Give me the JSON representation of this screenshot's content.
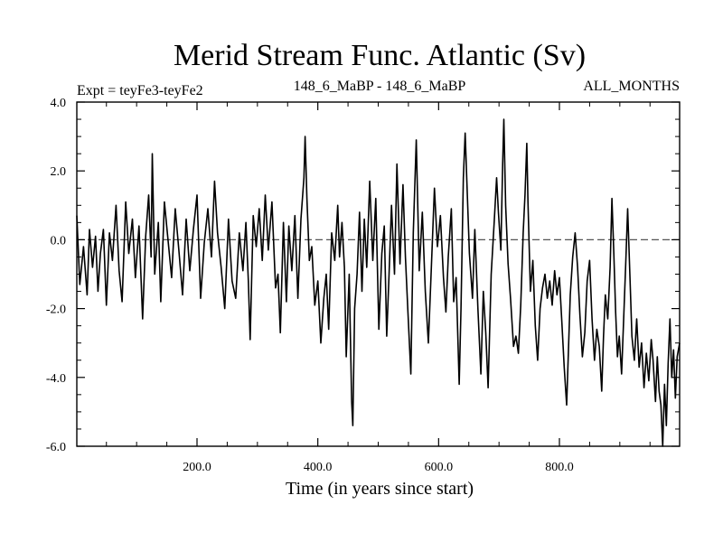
{
  "chart_data": {
    "type": "line",
    "title": "Merid Stream Func. Atlantic (Sv)",
    "subtitle_left": "Expt = teyFe3-teyFe2",
    "subtitle_center": "148_6_MaBP - 148_6_MaBP",
    "subtitle_right": "ALL_MONTHS",
    "xlabel": "Time (in years since start)",
    "ylabel": "",
    "xlim": [
      1,
      999
    ],
    "ylim": [
      -6.0,
      4.0
    ],
    "x_ticks": [
      200,
      400,
      600,
      800
    ],
    "x_tick_labels": [
      "200.0",
      "400.0",
      "600.0",
      "800.0"
    ],
    "y_ticks": [
      -6,
      -4,
      -2,
      0,
      2,
      4
    ],
    "y_tick_labels": [
      "-6.0",
      "-4.0",
      "-2.0",
      "0.0",
      "2.0",
      "4.0"
    ],
    "reference_line": {
      "y": 0.0,
      "style": "dashed"
    },
    "grid": false,
    "series": [
      {
        "name": "Merid Stream Func. Atlantic",
        "points": [
          [
            1,
            0.7
          ],
          [
            6,
            -1.3
          ],
          [
            12,
            -0.2
          ],
          [
            18,
            -1.6
          ],
          [
            22,
            0.3
          ],
          [
            27,
            -0.8
          ],
          [
            32,
            0.1
          ],
          [
            36,
            -1.5
          ],
          [
            40,
            -0.4
          ],
          [
            45,
            0.3
          ],
          [
            50,
            -1.9
          ],
          [
            55,
            0.2
          ],
          [
            60,
            -0.6
          ],
          [
            66,
            1.0
          ],
          [
            71,
            -0.9
          ],
          [
            76,
            -1.8
          ],
          [
            82,
            1.1
          ],
          [
            87,
            -0.4
          ],
          [
            93,
            0.6
          ],
          [
            98,
            -1.1
          ],
          [
            104,
            0.4
          ],
          [
            110,
            -2.3
          ],
          [
            115,
            0.1
          ],
          [
            120,
            1.3
          ],
          [
            124,
            -0.5
          ],
          [
            126,
            2.5
          ],
          [
            130,
            -1.0
          ],
          [
            136,
            0.5
          ],
          [
            140,
            -1.8
          ],
          [
            146,
            1.1
          ],
          [
            152,
            0.0
          ],
          [
            158,
            -1.1
          ],
          [
            164,
            0.9
          ],
          [
            170,
            -0.3
          ],
          [
            176,
            -1.6
          ],
          [
            182,
            0.6
          ],
          [
            188,
            -0.9
          ],
          [
            194,
            0.3
          ],
          [
            200,
            1.3
          ],
          [
            206,
            -1.7
          ],
          [
            212,
            -0.1
          ],
          [
            218,
            0.9
          ],
          [
            224,
            -0.5
          ],
          [
            229,
            1.7
          ],
          [
            234,
            0.2
          ],
          [
            240,
            -0.8
          ],
          [
            246,
            -2.0
          ],
          [
            252,
            0.6
          ],
          [
            258,
            -1.2
          ],
          [
            264,
            -1.7
          ],
          [
            270,
            0.2
          ],
          [
            276,
            -0.9
          ],
          [
            281,
            0.5
          ],
          [
            285,
            -1.2
          ],
          [
            288,
            -2.9
          ],
          [
            293,
            0.7
          ],
          [
            298,
            -0.2
          ],
          [
            303,
            0.9
          ],
          [
            308,
            -0.6
          ],
          [
            313,
            1.3
          ],
          [
            318,
            -0.3
          ],
          [
            324,
            1.1
          ],
          [
            330,
            -1.4
          ],
          [
            334,
            -1.0
          ],
          [
            338,
            -2.7
          ],
          [
            343,
            0.5
          ],
          [
            348,
            -1.8
          ],
          [
            352,
            0.4
          ],
          [
            357,
            -0.9
          ],
          [
            362,
            0.7
          ],
          [
            367,
            -1.7
          ],
          [
            372,
            0.6
          ],
          [
            377,
            1.8
          ],
          [
            379,
            3.0
          ],
          [
            382,
            1.2
          ],
          [
            386,
            -0.6
          ],
          [
            390,
            -0.2
          ],
          [
            395,
            -1.9
          ],
          [
            400,
            -1.2
          ],
          [
            405,
            -3.0
          ],
          [
            410,
            -1.7
          ],
          [
            414,
            -1.0
          ],
          [
            418,
            -2.6
          ],
          [
            423,
            0.2
          ],
          [
            428,
            -0.6
          ],
          [
            433,
            1.0
          ],
          [
            436,
            -0.5
          ],
          [
            440,
            0.5
          ],
          [
            444,
            -0.8
          ],
          [
            447,
            -3.4
          ],
          [
            452,
            -1.0
          ],
          [
            456,
            -4.7
          ],
          [
            458,
            -5.4
          ],
          [
            461,
            -2.0
          ],
          [
            465,
            -1.0
          ],
          [
            469,
            0.8
          ],
          [
            473,
            -1.5
          ],
          [
            477,
            0.6
          ],
          [
            481,
            -0.8
          ],
          [
            486,
            1.7
          ],
          [
            491,
            -0.6
          ],
          [
            496,
            1.2
          ],
          [
            501,
            -2.6
          ],
          [
            506,
            -0.4
          ],
          [
            510,
            0.4
          ],
          [
            514,
            -2.8
          ],
          [
            518,
            -1.0
          ],
          [
            522,
            1.0
          ],
          [
            527,
            -1.0
          ],
          [
            531,
            2.2
          ],
          [
            536,
            -0.7
          ],
          [
            541,
            1.6
          ],
          [
            545,
            -0.5
          ],
          [
            549,
            -2.0
          ],
          [
            554,
            -3.9
          ],
          [
            558,
            0.2
          ],
          [
            563,
            2.9
          ],
          [
            568,
            -0.9
          ],
          [
            573,
            0.8
          ],
          [
            578,
            -1.5
          ],
          [
            583,
            -3.0
          ],
          [
            588,
            -0.8
          ],
          [
            593,
            1.5
          ],
          [
            598,
            -0.2
          ],
          [
            603,
            0.7
          ],
          [
            608,
            -1.1
          ],
          [
            612,
            -2.1
          ],
          [
            616,
            -0.5
          ],
          [
            621,
            0.9
          ],
          [
            625,
            -1.8
          ],
          [
            629,
            -1.1
          ],
          [
            634,
            -4.2
          ],
          [
            637,
            -2.0
          ],
          [
            641,
            1.8
          ],
          [
            644,
            3.1
          ],
          [
            647,
            1.6
          ],
          [
            651,
            -0.4
          ],
          [
            656,
            -1.7
          ],
          [
            660,
            0.3
          ],
          [
            665,
            -2.0
          ],
          [
            670,
            -3.9
          ],
          [
            674,
            -1.5
          ],
          [
            678,
            -2.7
          ],
          [
            682,
            -4.3
          ],
          [
            687,
            -1.0
          ],
          [
            692,
            0.5
          ],
          [
            696,
            1.8
          ],
          [
            699,
            0.8
          ],
          [
            703,
            -0.3
          ],
          [
            706,
            2.2
          ],
          [
            708,
            3.5
          ],
          [
            711,
            1.0
          ],
          [
            715,
            -0.7
          ],
          [
            719,
            -1.7
          ],
          [
            724,
            -3.1
          ],
          [
            728,
            -2.8
          ],
          [
            732,
            -3.3
          ],
          [
            736,
            -1.9
          ],
          [
            740,
            0.2
          ],
          [
            743,
            1.3
          ],
          [
            746,
            2.8
          ],
          [
            748,
            1.1
          ],
          [
            752,
            -1.5
          ],
          [
            756,
            -0.6
          ],
          [
            760,
            -2.5
          ],
          [
            764,
            -3.5
          ],
          [
            768,
            -2.0
          ],
          [
            772,
            -1.4
          ],
          [
            776,
            -1.0
          ],
          [
            780,
            -1.7
          ],
          [
            784,
            -1.2
          ],
          [
            788,
            -1.9
          ],
          [
            792,
            -0.9
          ],
          [
            796,
            -1.6
          ],
          [
            800,
            -1.1
          ],
          [
            804,
            -2.4
          ],
          [
            808,
            -3.7
          ],
          [
            812,
            -4.8
          ],
          [
            815,
            -3.2
          ],
          [
            818,
            -1.6
          ],
          [
            822,
            -0.5
          ],
          [
            826,
            0.2
          ],
          [
            830,
            -0.8
          ],
          [
            834,
            -2.2
          ],
          [
            838,
            -3.4
          ],
          [
            842,
            -2.7
          ],
          [
            846,
            -1.2
          ],
          [
            850,
            -0.6
          ],
          [
            854,
            -2.3
          ],
          [
            858,
            -3.5
          ],
          [
            862,
            -2.6
          ],
          [
            866,
            -3.1
          ],
          [
            870,
            -4.4
          ],
          [
            873,
            -2.8
          ],
          [
            876,
            -1.6
          ],
          [
            880,
            -2.3
          ],
          [
            884,
            -0.8
          ],
          [
            887,
            1.2
          ],
          [
            890,
            -0.4
          ],
          [
            893,
            -2.1
          ],
          [
            896,
            -3.4
          ],
          [
            899,
            -2.8
          ],
          [
            903,
            -3.9
          ],
          [
            906,
            -2.5
          ],
          [
            910,
            -0.6
          ],
          [
            913,
            0.9
          ],
          [
            917,
            -1.2
          ],
          [
            920,
            -2.8
          ],
          [
            924,
            -3.5
          ],
          [
            928,
            -2.3
          ],
          [
            932,
            -3.7
          ],
          [
            936,
            -3.0
          ],
          [
            940,
            -4.3
          ],
          [
            944,
            -3.3
          ],
          [
            948,
            -4.1
          ],
          [
            952,
            -2.9
          ],
          [
            955,
            -3.5
          ],
          [
            959,
            -4.7
          ],
          [
            962,
            -3.4
          ],
          [
            965,
            -4.4
          ],
          [
            968,
            -4.8
          ],
          [
            971,
            -6.0
          ],
          [
            974,
            -4.2
          ],
          [
            977,
            -5.4
          ],
          [
            980,
            -3.6
          ],
          [
            983,
            -2.3
          ],
          [
            986,
            -4.0
          ],
          [
            989,
            -3.2
          ],
          [
            992,
            -4.6
          ],
          [
            995,
            -3.4
          ],
          [
            999,
            -3.0
          ]
        ]
      }
    ]
  },
  "colors": {
    "line": "#000000",
    "background": "#ffffff"
  }
}
